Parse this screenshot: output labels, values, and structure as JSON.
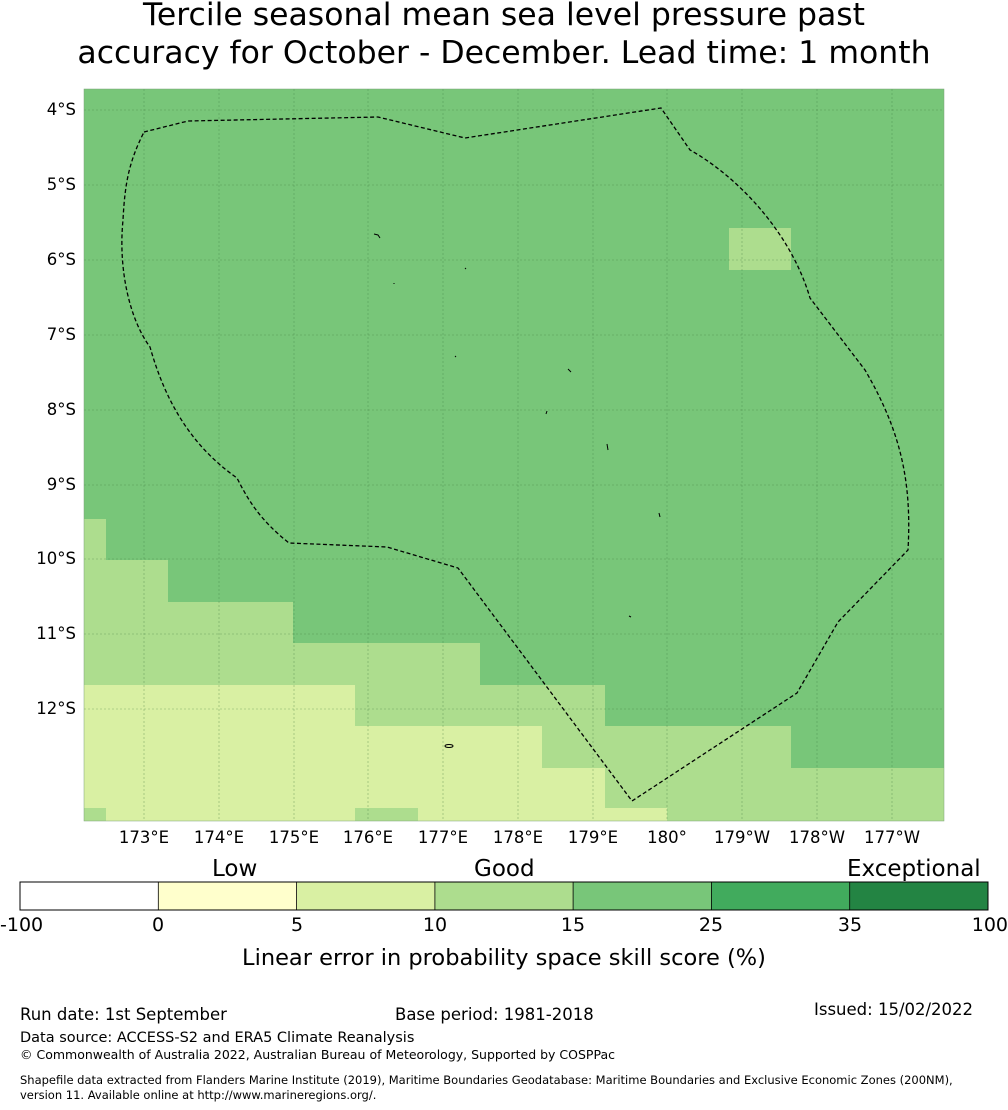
{
  "title": {
    "line1": "Tercile seasonal mean sea level pressure past",
    "line2": "accuracy for October - December. Lead time: 1 month"
  },
  "map": {
    "lat_labels": [
      "4°S",
      "5°S",
      "6°S",
      "7°S",
      "8°S",
      "9°S",
      "10°S",
      "11°S",
      "12°S"
    ],
    "lon_labels": [
      "173°E",
      "174°E",
      "175°E",
      "176°E",
      "177°E",
      "178°E",
      "179°E",
      "180°",
      "179°W",
      "178°W",
      "177°W"
    ],
    "lat_range": [
      "3.7°S",
      "13.5°S"
    ],
    "lon_range": [
      "172.2°E",
      "176.3°W"
    ],
    "eez_boundary": "dashed line",
    "colors": {
      "level_0_5": "#ffffcc",
      "level_5_10": "#d9f0a3",
      "level_10_15": "#addd8e",
      "level_15_25": "#78c679",
      "level_25_35": "#41ab5d",
      "level_35_100": "#238443"
    }
  },
  "colorbar": {
    "categories": [
      "Low",
      "Good",
      "Exceptional"
    ],
    "ticks": [
      "-100",
      "0",
      "5",
      "10",
      "15",
      "25",
      "35",
      "100"
    ],
    "colors": [
      "#ffffff",
      "#ffffcc",
      "#d9f0a3",
      "#addd8e",
      "#78c679",
      "#41ab5d",
      "#238443"
    ],
    "label": "Linear error in probability space skill score (%)"
  },
  "footer": {
    "run_date": "Run date: 1st September",
    "base_period": "Base period: 1981-2018",
    "issued": "Issued: 15/02/2022",
    "data_source": "Data source: ACCESS-S2 and ERA5 Climate Reanalysis",
    "copyright": "© Commonwealth of Australia 2022, Australian Bureau of Meteorology, Supported by COSPPac",
    "shapefile_line1": "Shapefile data extracted from Flanders Marine Institute (2019), Maritime Boundaries Geodatabase: Maritime Boundaries and Exclusive Economic Zones (200NM),",
    "shapefile_line2": "version 11. Available online at http://www.marineregions.org/."
  }
}
